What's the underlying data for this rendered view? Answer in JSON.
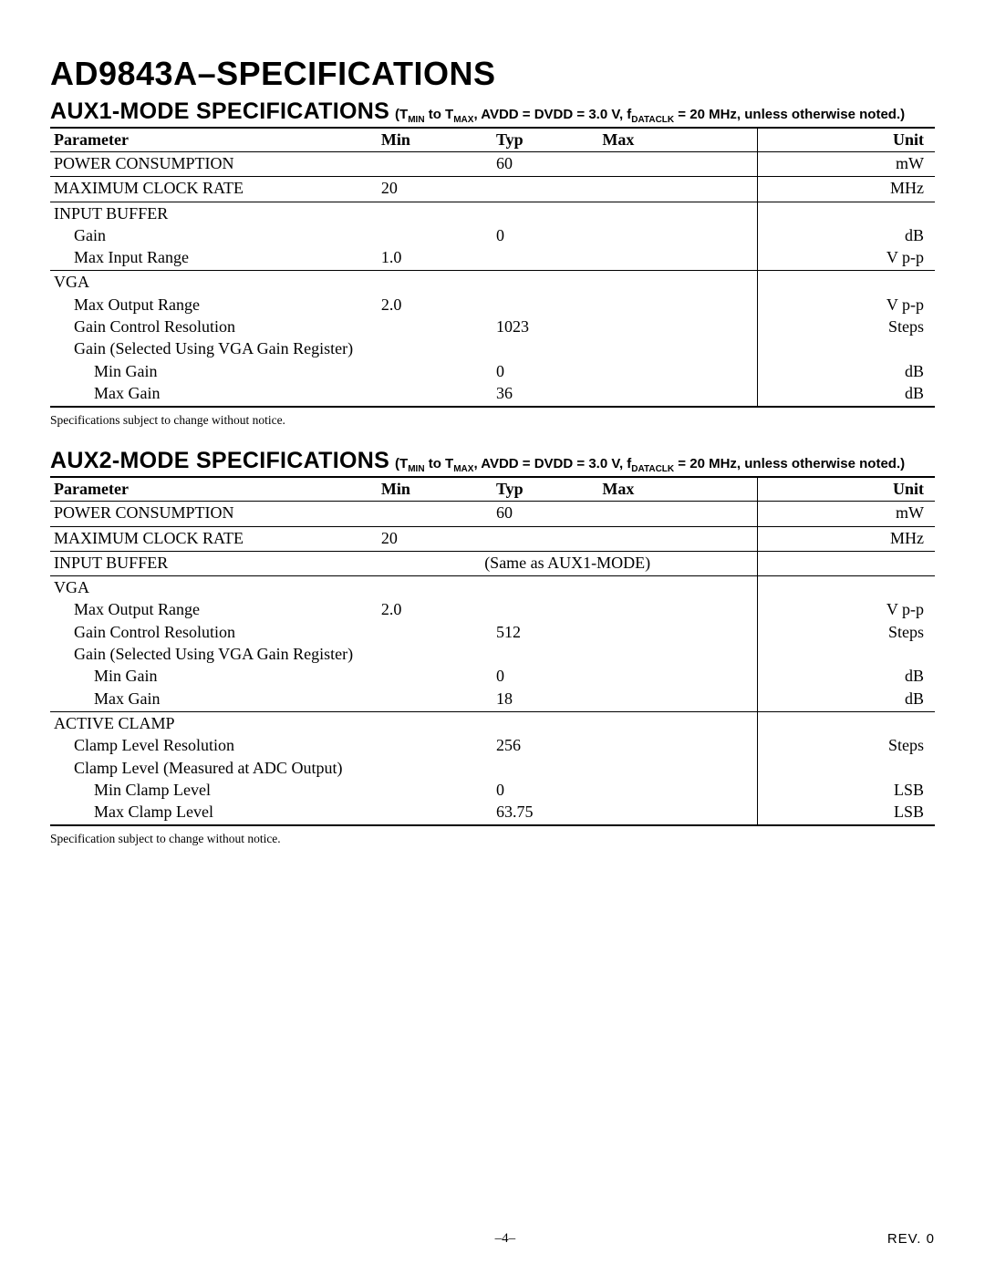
{
  "page": {
    "main_title": "AD9843A–SPECIFICATIONS",
    "page_number": "–4–",
    "rev": "REV. 0"
  },
  "columns": {
    "parameter": "Parameter",
    "min": "Min",
    "typ": "Typ",
    "max": "Max",
    "unit": "Unit"
  },
  "aux1": {
    "title": "AUX1-MODE SPECIFICATIONS",
    "conditions_html": "(T<sub>MIN</sub> to T<sub>MAX</sub>, AVDD = DVDD = 3.0 V, f<sub>DATACLK</sub> = 20 MHz, unless otherwise noted.)",
    "footnote": "Specifications subject to change without notice.",
    "rows": [
      {
        "param": "POWER CONSUMPTION",
        "indent": 0,
        "min": "",
        "typ": "60",
        "max": "",
        "unit": "mW",
        "sep": true
      },
      {
        "param": "MAXIMUM CLOCK RATE",
        "indent": 0,
        "min": "20",
        "typ": "",
        "max": "",
        "unit": "MHz",
        "sep": true
      },
      {
        "param": "INPUT BUFFER",
        "indent": 0,
        "min": "",
        "typ": "",
        "max": "",
        "unit": ""
      },
      {
        "param": "Gain",
        "indent": 1,
        "min": "",
        "typ": "0",
        "max": "",
        "unit": "dB"
      },
      {
        "param": "Max Input Range",
        "indent": 1,
        "min": "1.0",
        "typ": "",
        "max": "",
        "unit": "V p-p",
        "sep": true
      },
      {
        "param": "VGA",
        "indent": 0,
        "min": "",
        "typ": "",
        "max": "",
        "unit": ""
      },
      {
        "param": "Max Output Range",
        "indent": 1,
        "min": "2.0",
        "typ": "",
        "max": "",
        "unit": "V p-p"
      },
      {
        "param": "Gain Control Resolution",
        "indent": 1,
        "min": "",
        "typ": "1023",
        "max": "",
        "unit": "Steps"
      },
      {
        "param": "Gain (Selected Using VGA Gain Register)",
        "indent": 1,
        "min": "",
        "typ": "",
        "max": "",
        "unit": ""
      },
      {
        "param": "Min Gain",
        "indent": 2,
        "min": "",
        "typ": "0",
        "max": "",
        "unit": "dB"
      },
      {
        "param": "Max Gain",
        "indent": 2,
        "min": "",
        "typ": "36",
        "max": "",
        "unit": "dB",
        "last": true
      }
    ]
  },
  "aux2": {
    "title": "AUX2-MODE SPECIFICATIONS",
    "conditions_html": "(T<sub>MIN</sub> to T<sub>MAX</sub>, AVDD = DVDD = 3.0 V, f<sub>DATACLK</sub> = 20 MHz, unless otherwise noted.)",
    "footnote": "Specification subject to change without notice.",
    "rows": [
      {
        "param": "POWER CONSUMPTION",
        "indent": 0,
        "min": "",
        "typ": "60",
        "max": "",
        "unit": "mW",
        "sep": true
      },
      {
        "param": "MAXIMUM CLOCK RATE",
        "indent": 0,
        "min": "20",
        "typ": "",
        "max": "",
        "unit": "MHz",
        "sep": true
      },
      {
        "param": "INPUT BUFFER",
        "indent": 0,
        "span": "(Same as AUX1-MODE)",
        "unit": "",
        "sep": true
      },
      {
        "param": "VGA",
        "indent": 0,
        "min": "",
        "typ": "",
        "max": "",
        "unit": ""
      },
      {
        "param": "Max Output Range",
        "indent": 1,
        "min": "2.0",
        "typ": "",
        "max": "",
        "unit": "V p-p"
      },
      {
        "param": "Gain Control Resolution",
        "indent": 1,
        "min": "",
        "typ": "512",
        "max": "",
        "unit": "Steps"
      },
      {
        "param": "Gain (Selected Using VGA Gain Register)",
        "indent": 1,
        "min": "",
        "typ": "",
        "max": "",
        "unit": ""
      },
      {
        "param": "Min Gain",
        "indent": 2,
        "min": "",
        "typ": "0",
        "max": "",
        "unit": "dB"
      },
      {
        "param": "Max Gain",
        "indent": 2,
        "min": "",
        "typ": "18",
        "max": "",
        "unit": "dB",
        "sep": true
      },
      {
        "param": "ACTIVE CLAMP",
        "indent": 0,
        "min": "",
        "typ": "",
        "max": "",
        "unit": ""
      },
      {
        "param": "Clamp Level Resolution",
        "indent": 1,
        "min": "",
        "typ": "256",
        "max": "",
        "unit": "Steps"
      },
      {
        "param": "Clamp Level (Measured at ADC Output)",
        "indent": 1,
        "min": "",
        "typ": "",
        "max": "",
        "unit": ""
      },
      {
        "param": "Min Clamp Level",
        "indent": 2,
        "min": "",
        "typ": "0",
        "max": "",
        "unit": "LSB"
      },
      {
        "param": "Max Clamp Level",
        "indent": 2,
        "min": "",
        "typ": "63.75",
        "max": "",
        "unit": "LSB",
        "last": true
      }
    ]
  }
}
